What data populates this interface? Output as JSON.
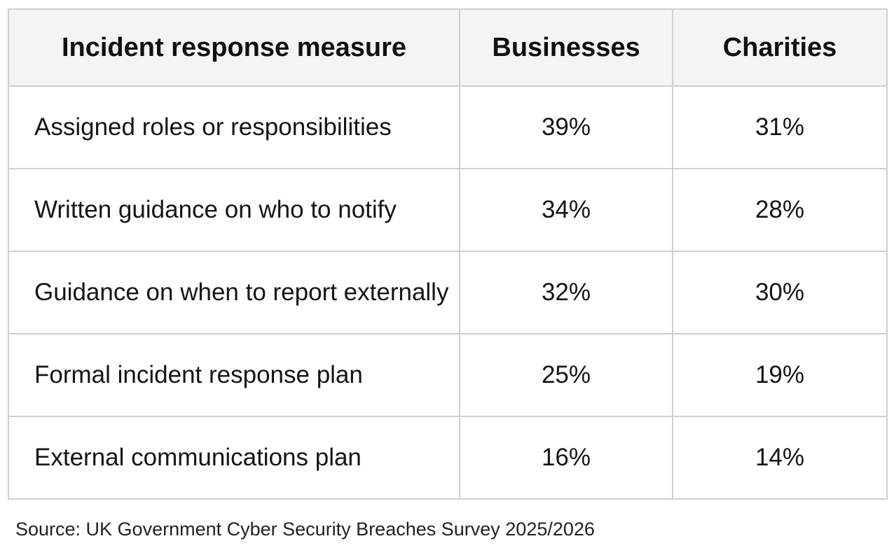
{
  "table": {
    "headers": [
      "Incident response measure",
      "Businesses",
      "Charities"
    ],
    "rows": [
      {
        "measure": "Assigned roles or responsibilities",
        "businesses": "39%",
        "charities": "31%"
      },
      {
        "measure": "Written guidance on who to notify",
        "businesses": "34%",
        "charities": "28%"
      },
      {
        "measure": "Guidance on when to report externally",
        "businesses": "32%",
        "charities": "30%"
      },
      {
        "measure": "Formal incident response plan",
        "businesses": "25%",
        "charities": "19%"
      },
      {
        "measure": "External communications plan",
        "businesses": "16%",
        "charities": "14%"
      }
    ]
  },
  "source": "Source: UK Government Cyber Security Breaches Survey 2025/2026",
  "colors": {
    "header_background": "#f4f4f4",
    "grid_line": "#cfcfcf",
    "text": "#111111"
  }
}
